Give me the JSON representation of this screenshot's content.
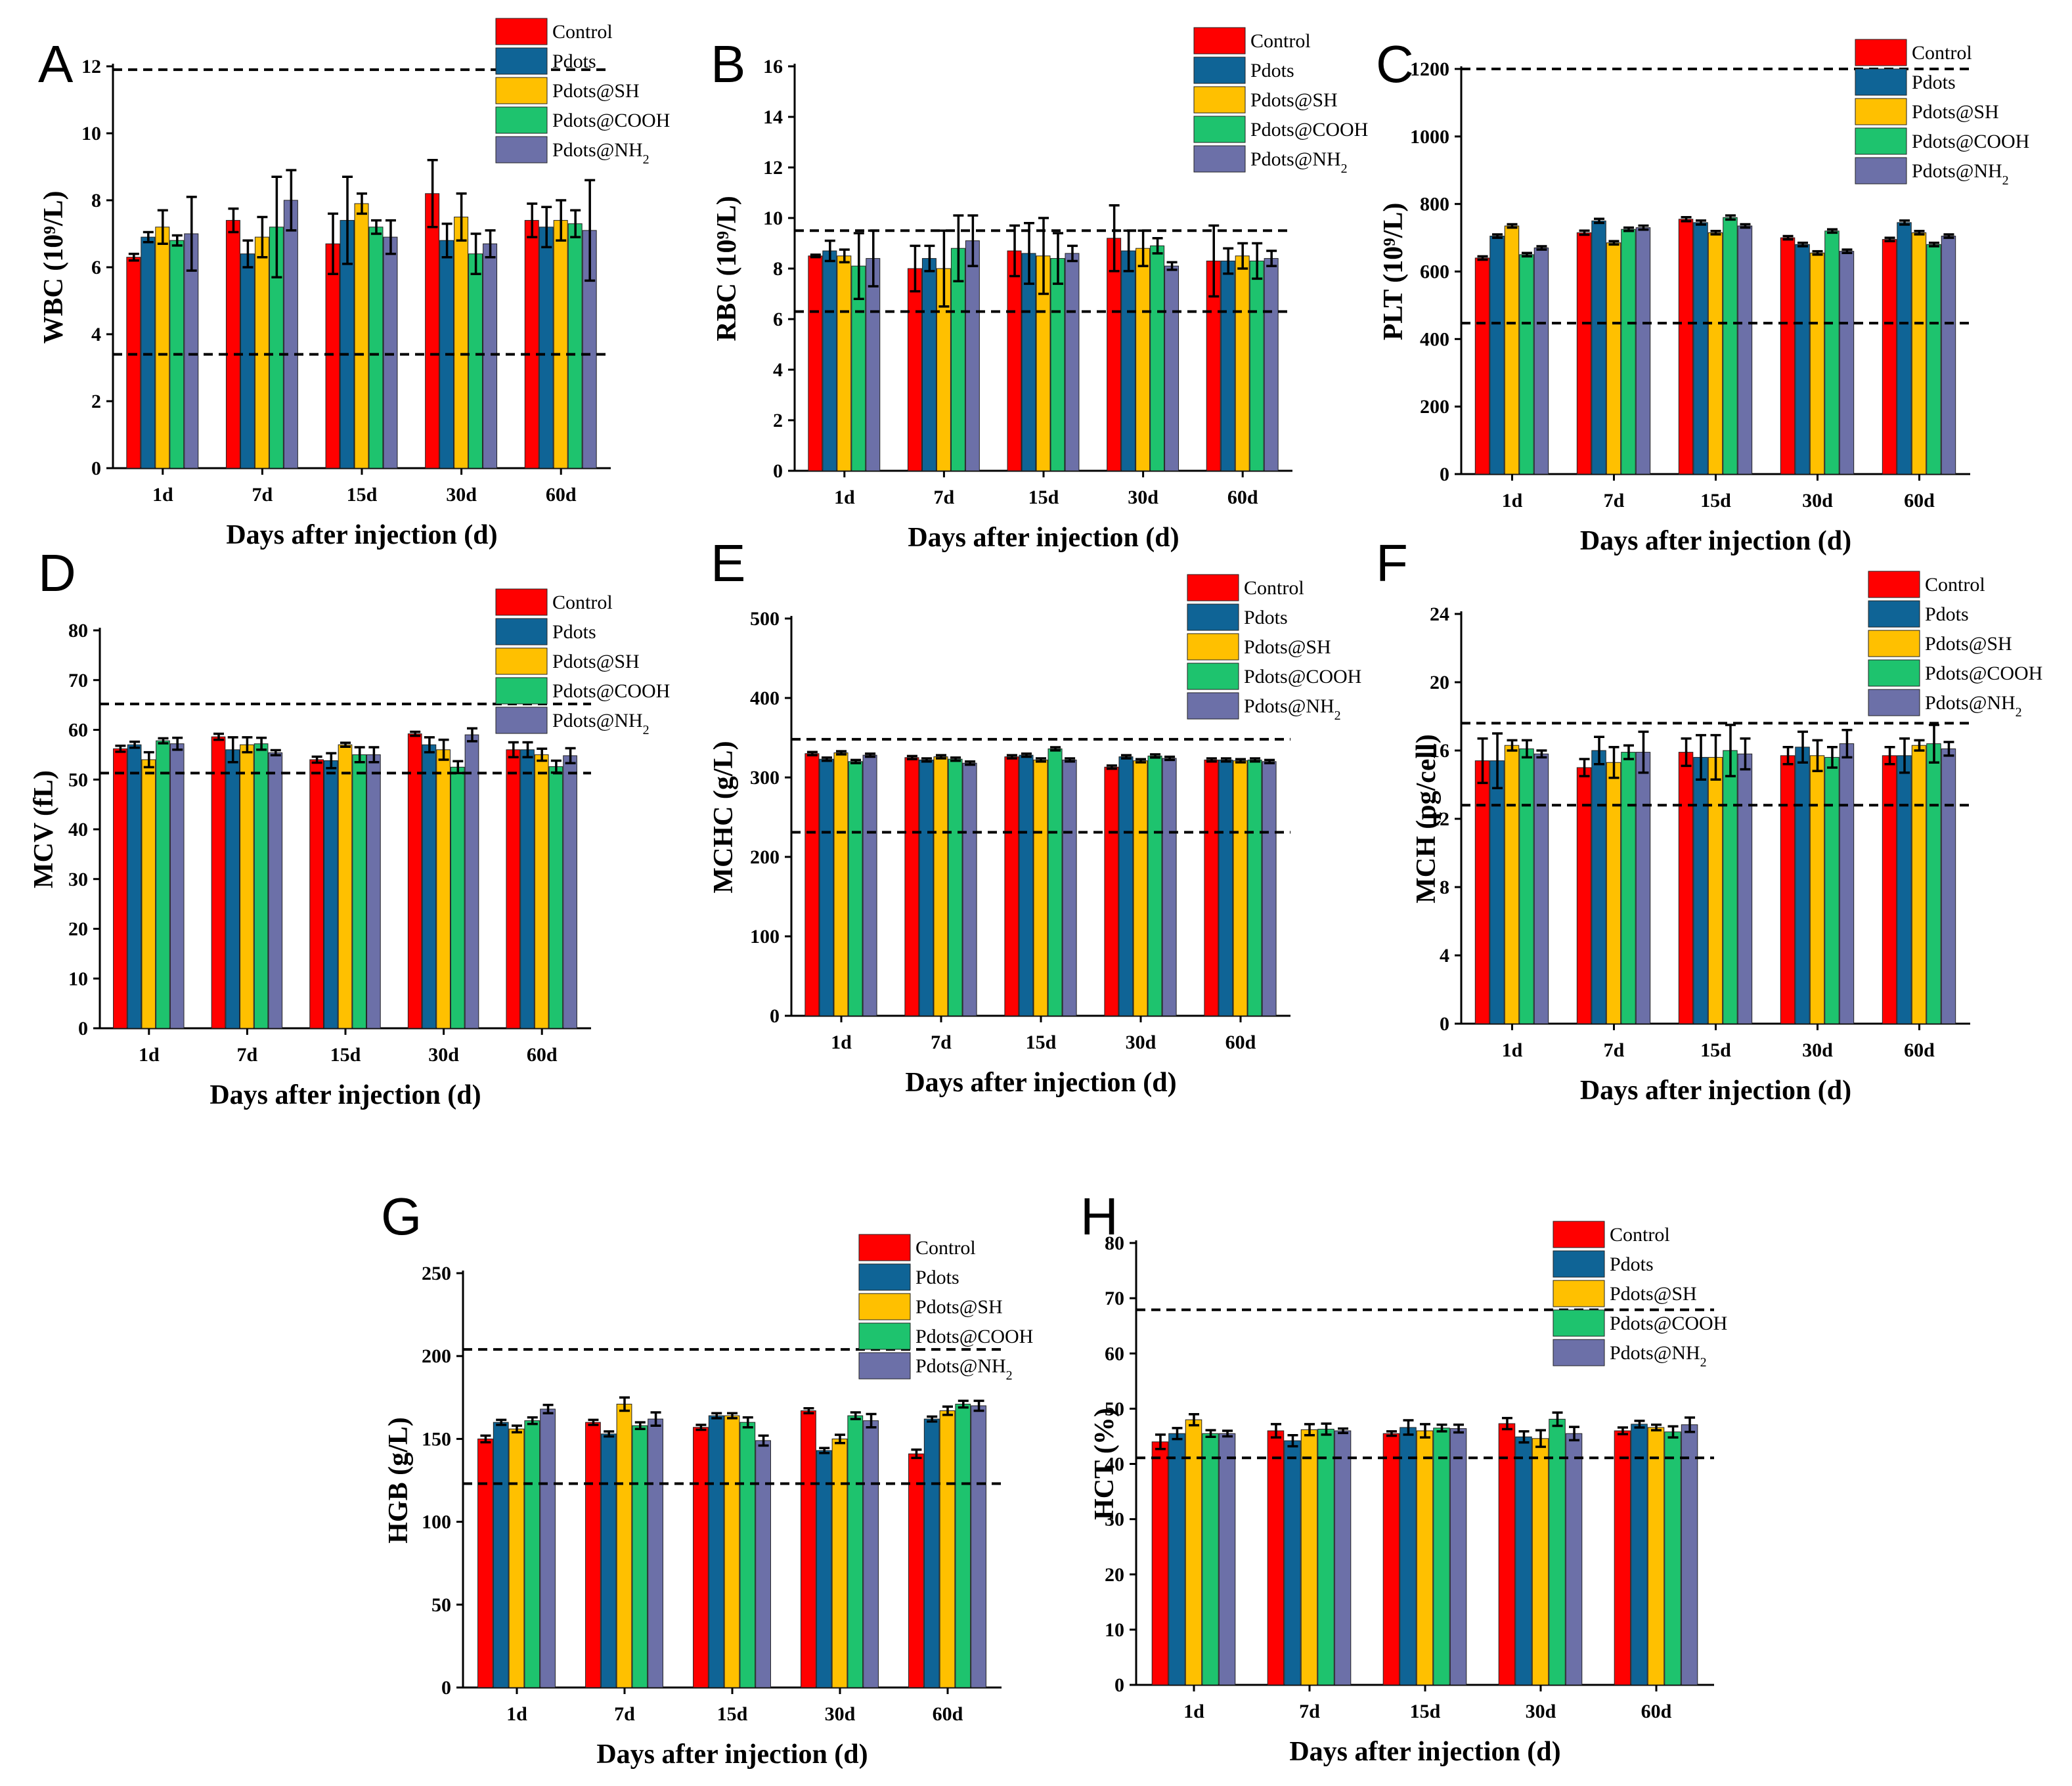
{
  "figure": {
    "x_axis_title": "Days after injection (d)",
    "categories": [
      "1d",
      "7d",
      "15d",
      "30d",
      "60d"
    ],
    "series_colors": {
      "Control": "#ff0000",
      "Pdots": "#0f6496",
      "Pdots@SH": "#ffc000",
      "Pdots@COOH": "#1ec36e",
      "Pdots@NH2": "#6c70a8"
    }
  },
  "chart_data": [
    {
      "panel": "A",
      "type": "bar",
      "ylabel": "WBC (10⁹/L)",
      "ylim": [
        0,
        12
      ],
      "yticks": [
        "0",
        "2",
        "4",
        "6",
        "8",
        "10",
        "12"
      ],
      "reference_lines": [
        3.4,
        11.9
      ],
      "categories": [
        "1d",
        "7d",
        "15d",
        "30d",
        "60d"
      ],
      "series": [
        {
          "name": "Control",
          "values": [
            6.3,
            7.4,
            6.7,
            8.2,
            7.4
          ],
          "errors": [
            0.1,
            0.35,
            0.9,
            1.0,
            0.5
          ]
        },
        {
          "name": "Pdots",
          "values": [
            6.9,
            6.4,
            7.4,
            6.8,
            7.2
          ],
          "errors": [
            0.15,
            0.4,
            1.3,
            0.5,
            0.6
          ]
        },
        {
          "name": "Pdots@SH",
          "values": [
            7.2,
            6.9,
            7.9,
            7.5,
            7.4
          ],
          "errors": [
            0.5,
            0.6,
            0.3,
            0.7,
            0.6
          ]
        },
        {
          "name": "Pdots@COOH",
          "values": [
            6.8,
            7.2,
            7.2,
            6.4,
            7.3
          ],
          "errors": [
            0.15,
            1.5,
            0.2,
            0.6,
            0.4
          ]
        },
        {
          "name": "Pdots@NH2",
          "values": [
            7.0,
            8.0,
            6.9,
            6.7,
            7.1
          ],
          "errors": [
            1.1,
            0.9,
            0.5,
            0.4,
            1.5
          ]
        }
      ]
    },
    {
      "panel": "B",
      "type": "bar",
      "ylabel": "RBC (10⁹/L)",
      "ylim": [
        0,
        16
      ],
      "yticks": [
        "0",
        "2",
        "4",
        "6",
        "8",
        "10",
        "12",
        "14",
        "16"
      ],
      "reference_lines": [
        6.3,
        9.5
      ],
      "categories": [
        "1d",
        "7d",
        "15d",
        "30d",
        "60d"
      ],
      "series": [
        {
          "name": "Control",
          "values": [
            8.5,
            8.0,
            8.7,
            9.2,
            8.3
          ],
          "errors": [
            0.05,
            0.9,
            1.0,
            1.3,
            1.4
          ]
        },
        {
          "name": "Pdots",
          "values": [
            8.7,
            8.4,
            8.6,
            8.7,
            8.3
          ],
          "errors": [
            0.4,
            0.5,
            1.2,
            0.8,
            0.5
          ]
        },
        {
          "name": "Pdots@SH",
          "values": [
            8.5,
            8.0,
            8.5,
            8.8,
            8.5
          ],
          "errors": [
            0.25,
            1.5,
            1.5,
            0.7,
            0.5
          ]
        },
        {
          "name": "Pdots@COOH",
          "values": [
            8.1,
            8.8,
            8.4,
            8.9,
            8.3
          ],
          "errors": [
            1.3,
            1.3,
            1.0,
            0.3,
            0.7
          ]
        },
        {
          "name": "Pdots@NH2",
          "values": [
            8.4,
            9.1,
            8.6,
            8.1,
            8.4
          ],
          "errors": [
            1.1,
            1.0,
            0.3,
            0.15,
            0.3
          ]
        }
      ]
    },
    {
      "panel": "C",
      "type": "bar",
      "ylabel": "PLT (10⁹/L)",
      "ylim": [
        0,
        1200
      ],
      "yticks": [
        "0",
        "200",
        "400",
        "600",
        "800",
        "1000",
        "1200"
      ],
      "reference_lines": [
        447,
        1200
      ],
      "categories": [
        "1d",
        "7d",
        "15d",
        "30d",
        "60d"
      ],
      "series": [
        {
          "name": "Control",
          "values": [
            640,
            715,
            755,
            700,
            695
          ],
          "errors": [
            5,
            6,
            6,
            5,
            5
          ]
        },
        {
          "name": "Pdots",
          "values": [
            705,
            750,
            745,
            680,
            745
          ],
          "errors": [
            5,
            6,
            6,
            5,
            6
          ]
        },
        {
          "name": "Pdots@SH",
          "values": [
            735,
            685,
            715,
            655,
            715
          ],
          "errors": [
            5,
            5,
            5,
            5,
            5
          ]
        },
        {
          "name": "Pdots@COOH",
          "values": [
            650,
            725,
            760,
            720,
            680
          ],
          "errors": [
            5,
            5,
            6,
            5,
            5
          ]
        },
        {
          "name": "Pdots@NH2",
          "values": [
            670,
            730,
            735,
            660,
            705
          ],
          "errors": [
            5,
            6,
            5,
            5,
            5
          ]
        }
      ]
    },
    {
      "panel": "D",
      "type": "bar",
      "ylabel": "MCV (fL)",
      "ylim": [
        0,
        80
      ],
      "yticks": [
        "0",
        "10",
        "20",
        "30",
        "40",
        "50",
        "60",
        "70",
        "80"
      ],
      "reference_lines": [
        51.3,
        65.2
      ],
      "categories": [
        "1d",
        "7d",
        "15d",
        "30d",
        "60d"
      ],
      "series": [
        {
          "name": "Control",
          "values": [
            56.2,
            58.6,
            54.0,
            59.2,
            56.0
          ],
          "errors": [
            0.6,
            0.6,
            0.6,
            0.4,
            1.5
          ]
        },
        {
          "name": "Pdots",
          "values": [
            57.0,
            56.0,
            53.8,
            57.0,
            56.0
          ],
          "errors": [
            0.6,
            2.5,
            1.5,
            1.5,
            1.5
          ]
        },
        {
          "name": "Pdots@SH",
          "values": [
            54.0,
            57.0,
            57.0,
            56.0,
            55.0
          ],
          "errors": [
            1.5,
            1.5,
            0.4,
            2.0,
            1.2
          ]
        },
        {
          "name": "Pdots@COOH",
          "values": [
            57.8,
            57.2,
            55.0,
            52.5,
            52.6
          ],
          "errors": [
            0.5,
            1.2,
            1.5,
            1.2,
            1.2
          ]
        },
        {
          "name": "Pdots@NH2",
          "values": [
            57.2,
            55.4,
            55.0,
            59.0,
            54.8
          ],
          "errors": [
            1.2,
            0.5,
            1.5,
            1.3,
            1.5
          ]
        }
      ]
    },
    {
      "panel": "E",
      "type": "bar",
      "ylabel": "MCHC (g/L)",
      "ylim": [
        0,
        500
      ],
      "yticks": [
        "0",
        "100",
        "200",
        "300",
        "400",
        "500"
      ],
      "reference_lines": [
        231,
        348
      ],
      "categories": [
        "1d",
        "7d",
        "15d",
        "30d",
        "60d"
      ],
      "series": [
        {
          "name": "Control",
          "values": [
            330,
            325,
            326,
            313,
            322
          ],
          "errors": [
            2,
            2,
            2,
            2,
            2
          ]
        },
        {
          "name": "Pdots",
          "values": [
            323,
            322,
            328,
            326,
            322
          ],
          "errors": [
            2,
            2,
            2,
            2,
            2
          ]
        },
        {
          "name": "Pdots@SH",
          "values": [
            331,
            326,
            322,
            321,
            321
          ],
          "errors": [
            2,
            2,
            2,
            2,
            2
          ]
        },
        {
          "name": "Pdots@COOH",
          "values": [
            320,
            323,
            336,
            327,
            322
          ],
          "errors": [
            2,
            2,
            2,
            2,
            2
          ]
        },
        {
          "name": "Pdots@NH2",
          "values": [
            328,
            318,
            322,
            324,
            320
          ],
          "errors": [
            2,
            2,
            2,
            2,
            2
          ]
        }
      ]
    },
    {
      "panel": "F",
      "type": "bar",
      "ylabel": "MCH (pg/cell)",
      "ylim": [
        0,
        24
      ],
      "yticks": [
        "0",
        "4",
        "8",
        "12",
        "16",
        "20",
        "24"
      ],
      "reference_lines": [
        12.8,
        17.6
      ],
      "categories": [
        "1d",
        "7d",
        "15d",
        "30d",
        "60d"
      ],
      "series": [
        {
          "name": "Control",
          "values": [
            15.4,
            15.0,
            15.9,
            15.7,
            15.7
          ],
          "errors": [
            1.3,
            0.5,
            0.8,
            0.5,
            0.5
          ]
        },
        {
          "name": "Pdots",
          "values": [
            15.4,
            16.0,
            15.6,
            16.2,
            15.7
          ],
          "errors": [
            1.6,
            0.8,
            1.3,
            0.9,
            1.0
          ]
        },
        {
          "name": "Pdots@SH",
          "values": [
            16.3,
            15.3,
            15.6,
            15.7,
            16.3
          ],
          "errors": [
            0.3,
            0.9,
            1.3,
            0.9,
            0.3
          ]
        },
        {
          "name": "Pdots@COOH",
          "values": [
            16.1,
            15.9,
            16.0,
            15.6,
            16.4
          ],
          "errors": [
            0.5,
            0.4,
            1.5,
            0.6,
            1.1
          ]
        },
        {
          "name": "Pdots@NH2",
          "values": [
            15.8,
            15.9,
            15.8,
            16.4,
            16.1
          ],
          "errors": [
            0.2,
            1.2,
            0.9,
            0.8,
            0.4
          ]
        }
      ]
    },
    {
      "panel": "G",
      "type": "bar",
      "ylabel": "HGB (g/L)",
      "ylim": [
        0,
        250
      ],
      "yticks": [
        "0",
        "50",
        "100",
        "150",
        "200",
        "250"
      ],
      "reference_lines": [
        123,
        204
      ],
      "categories": [
        "1d",
        "7d",
        "15d",
        "30d",
        "60d"
      ],
      "series": [
        {
          "name": "Control",
          "values": [
            150,
            160,
            157,
            167,
            141
          ],
          "errors": [
            2,
            1.5,
            1.5,
            1.5,
            2.5
          ]
        },
        {
          "name": "Pdots",
          "values": [
            160,
            153,
            164,
            143,
            162
          ],
          "errors": [
            1.5,
            1.5,
            1.5,
            1.5,
            1.5
          ]
        },
        {
          "name": "Pdots@SH",
          "values": [
            156,
            171,
            164,
            150,
            167
          ],
          "errors": [
            2,
            4,
            1.5,
            2.5,
            2.5
          ]
        },
        {
          "name": "Pdots@COOH",
          "values": [
            161,
            158,
            160,
            164,
            171
          ],
          "errors": [
            2,
            2,
            3,
            2,
            2
          ]
        },
        {
          "name": "Pdots@NH2",
          "values": [
            168,
            162,
            149,
            161,
            170
          ],
          "errors": [
            2.5,
            4,
            3,
            4,
            3
          ]
        }
      ]
    },
    {
      "panel": "H",
      "type": "bar",
      "ylabel": "HCT (%)",
      "ylim": [
        0,
        80
      ],
      "yticks": [
        "0",
        "10",
        "20",
        "30",
        "40",
        "50",
        "60",
        "70",
        "80"
      ],
      "reference_lines": [
        41.1,
        67.9
      ],
      "categories": [
        "1d",
        "7d",
        "15d",
        "30d",
        "60d"
      ],
      "series": [
        {
          "name": "Control",
          "values": [
            44.0,
            46.0,
            45.5,
            47.3,
            46.0
          ],
          "errors": [
            1.3,
            1.2,
            0.4,
            1.0,
            0.6
          ]
        },
        {
          "name": "Pdots",
          "values": [
            45.5,
            44.2,
            46.6,
            44.9,
            47.2
          ],
          "errors": [
            1.0,
            1.0,
            1.3,
            1.0,
            0.6
          ]
        },
        {
          "name": "Pdots@SH",
          "values": [
            48.0,
            46.2,
            46.0,
            44.6,
            46.6
          ],
          "errors": [
            1.0,
            1.0,
            1.2,
            1.5,
            0.5
          ]
        },
        {
          "name": "Pdots@COOH",
          "values": [
            45.5,
            46.3,
            46.5,
            48.1,
            45.8
          ],
          "errors": [
            0.6,
            1.0,
            0.6,
            1.2,
            1.0
          ]
        },
        {
          "name": "Pdots@NH2",
          "values": [
            45.5,
            46.0,
            46.4,
            45.5,
            47.1
          ],
          "errors": [
            0.5,
            0.4,
            0.7,
            1.2,
            1.3
          ]
        }
      ]
    }
  ]
}
